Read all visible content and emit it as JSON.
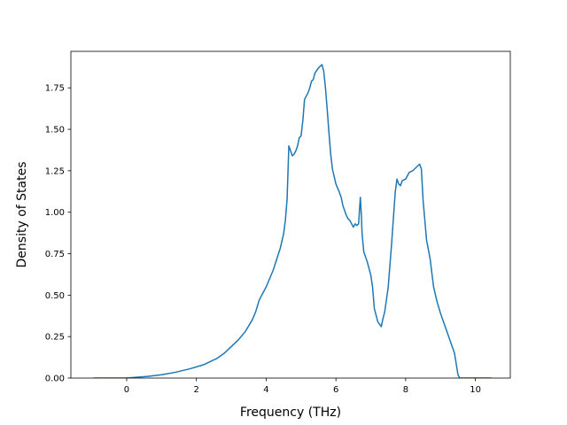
{
  "chart_data": {
    "type": "line",
    "title": "",
    "xlabel": "Frequency (THz)",
    "ylabel": "Density of States",
    "xlim": [
      -1.6,
      11.0
    ],
    "ylim": [
      0.0,
      1.97
    ],
    "grid": false,
    "x_ticks": [
      0,
      2,
      4,
      6,
      8,
      10
    ],
    "x_tick_labels": [
      "0",
      "2",
      "4",
      "6",
      "8",
      "10"
    ],
    "y_ticks": [
      0.0,
      0.25,
      0.5,
      0.75,
      1.0,
      1.25,
      1.5,
      1.75
    ],
    "y_tick_labels": [
      "0.00",
      "0.25",
      "0.50",
      "0.75",
      "1.00",
      "1.25",
      "1.50",
      "1.75"
    ],
    "series": [
      {
        "color": "#1f77b4",
        "x": [
          -0.95,
          -0.5,
          0.0,
          0.3,
          0.6,
          1.0,
          1.4,
          1.8,
          2.2,
          2.6,
          2.8,
          2.9,
          3.0,
          3.2,
          3.4,
          3.6,
          3.7,
          3.8,
          4.0,
          4.2,
          4.4,
          4.5,
          4.55,
          4.6,
          4.65,
          4.7,
          4.75,
          4.8,
          4.85,
          4.9,
          4.95,
          5.0,
          5.05,
          5.1,
          5.2,
          5.25,
          5.3,
          5.35,
          5.4,
          5.5,
          5.6,
          5.65,
          5.7,
          5.75,
          5.8,
          5.85,
          5.9,
          6.0,
          6.1,
          6.15,
          6.2,
          6.3,
          6.35,
          6.4,
          6.5,
          6.55,
          6.6,
          6.65,
          6.7,
          6.73,
          6.75,
          6.8,
          6.9,
          7.0,
          7.05,
          7.1,
          7.2,
          7.3,
          7.35,
          7.4,
          7.5,
          7.6,
          7.7,
          7.75,
          7.8,
          7.85,
          7.9,
          8.0,
          8.05,
          8.1,
          8.2,
          8.3,
          8.4,
          8.45,
          8.5,
          8.55,
          8.6,
          8.7,
          8.8,
          8.9,
          9.0,
          9.2,
          9.4,
          9.5,
          9.55,
          9.6,
          9.8,
          10.0,
          10.45
        ],
        "y": [
          0.0,
          0.0,
          0.0,
          0.005,
          0.01,
          0.02,
          0.035,
          0.055,
          0.08,
          0.12,
          0.15,
          0.17,
          0.19,
          0.23,
          0.28,
          0.35,
          0.4,
          0.47,
          0.55,
          0.65,
          0.78,
          0.87,
          0.95,
          1.08,
          1.4,
          1.37,
          1.34,
          1.35,
          1.37,
          1.4,
          1.45,
          1.46,
          1.55,
          1.68,
          1.72,
          1.75,
          1.79,
          1.8,
          1.84,
          1.87,
          1.89,
          1.85,
          1.75,
          1.62,
          1.48,
          1.35,
          1.26,
          1.17,
          1.12,
          1.09,
          1.04,
          0.98,
          0.96,
          0.95,
          0.91,
          0.93,
          0.92,
          0.93,
          1.09,
          0.98,
          0.87,
          0.76,
          0.7,
          0.62,
          0.55,
          0.42,
          0.34,
          0.31,
          0.36,
          0.4,
          0.55,
          0.82,
          1.12,
          1.2,
          1.17,
          1.16,
          1.19,
          1.2,
          1.22,
          1.24,
          1.25,
          1.27,
          1.29,
          1.26,
          1.07,
          0.95,
          0.83,
          0.72,
          0.55,
          0.46,
          0.39,
          0.27,
          0.15,
          0.02,
          0.0,
          0.0,
          0.0,
          0.0,
          0.0
        ]
      }
    ]
  }
}
